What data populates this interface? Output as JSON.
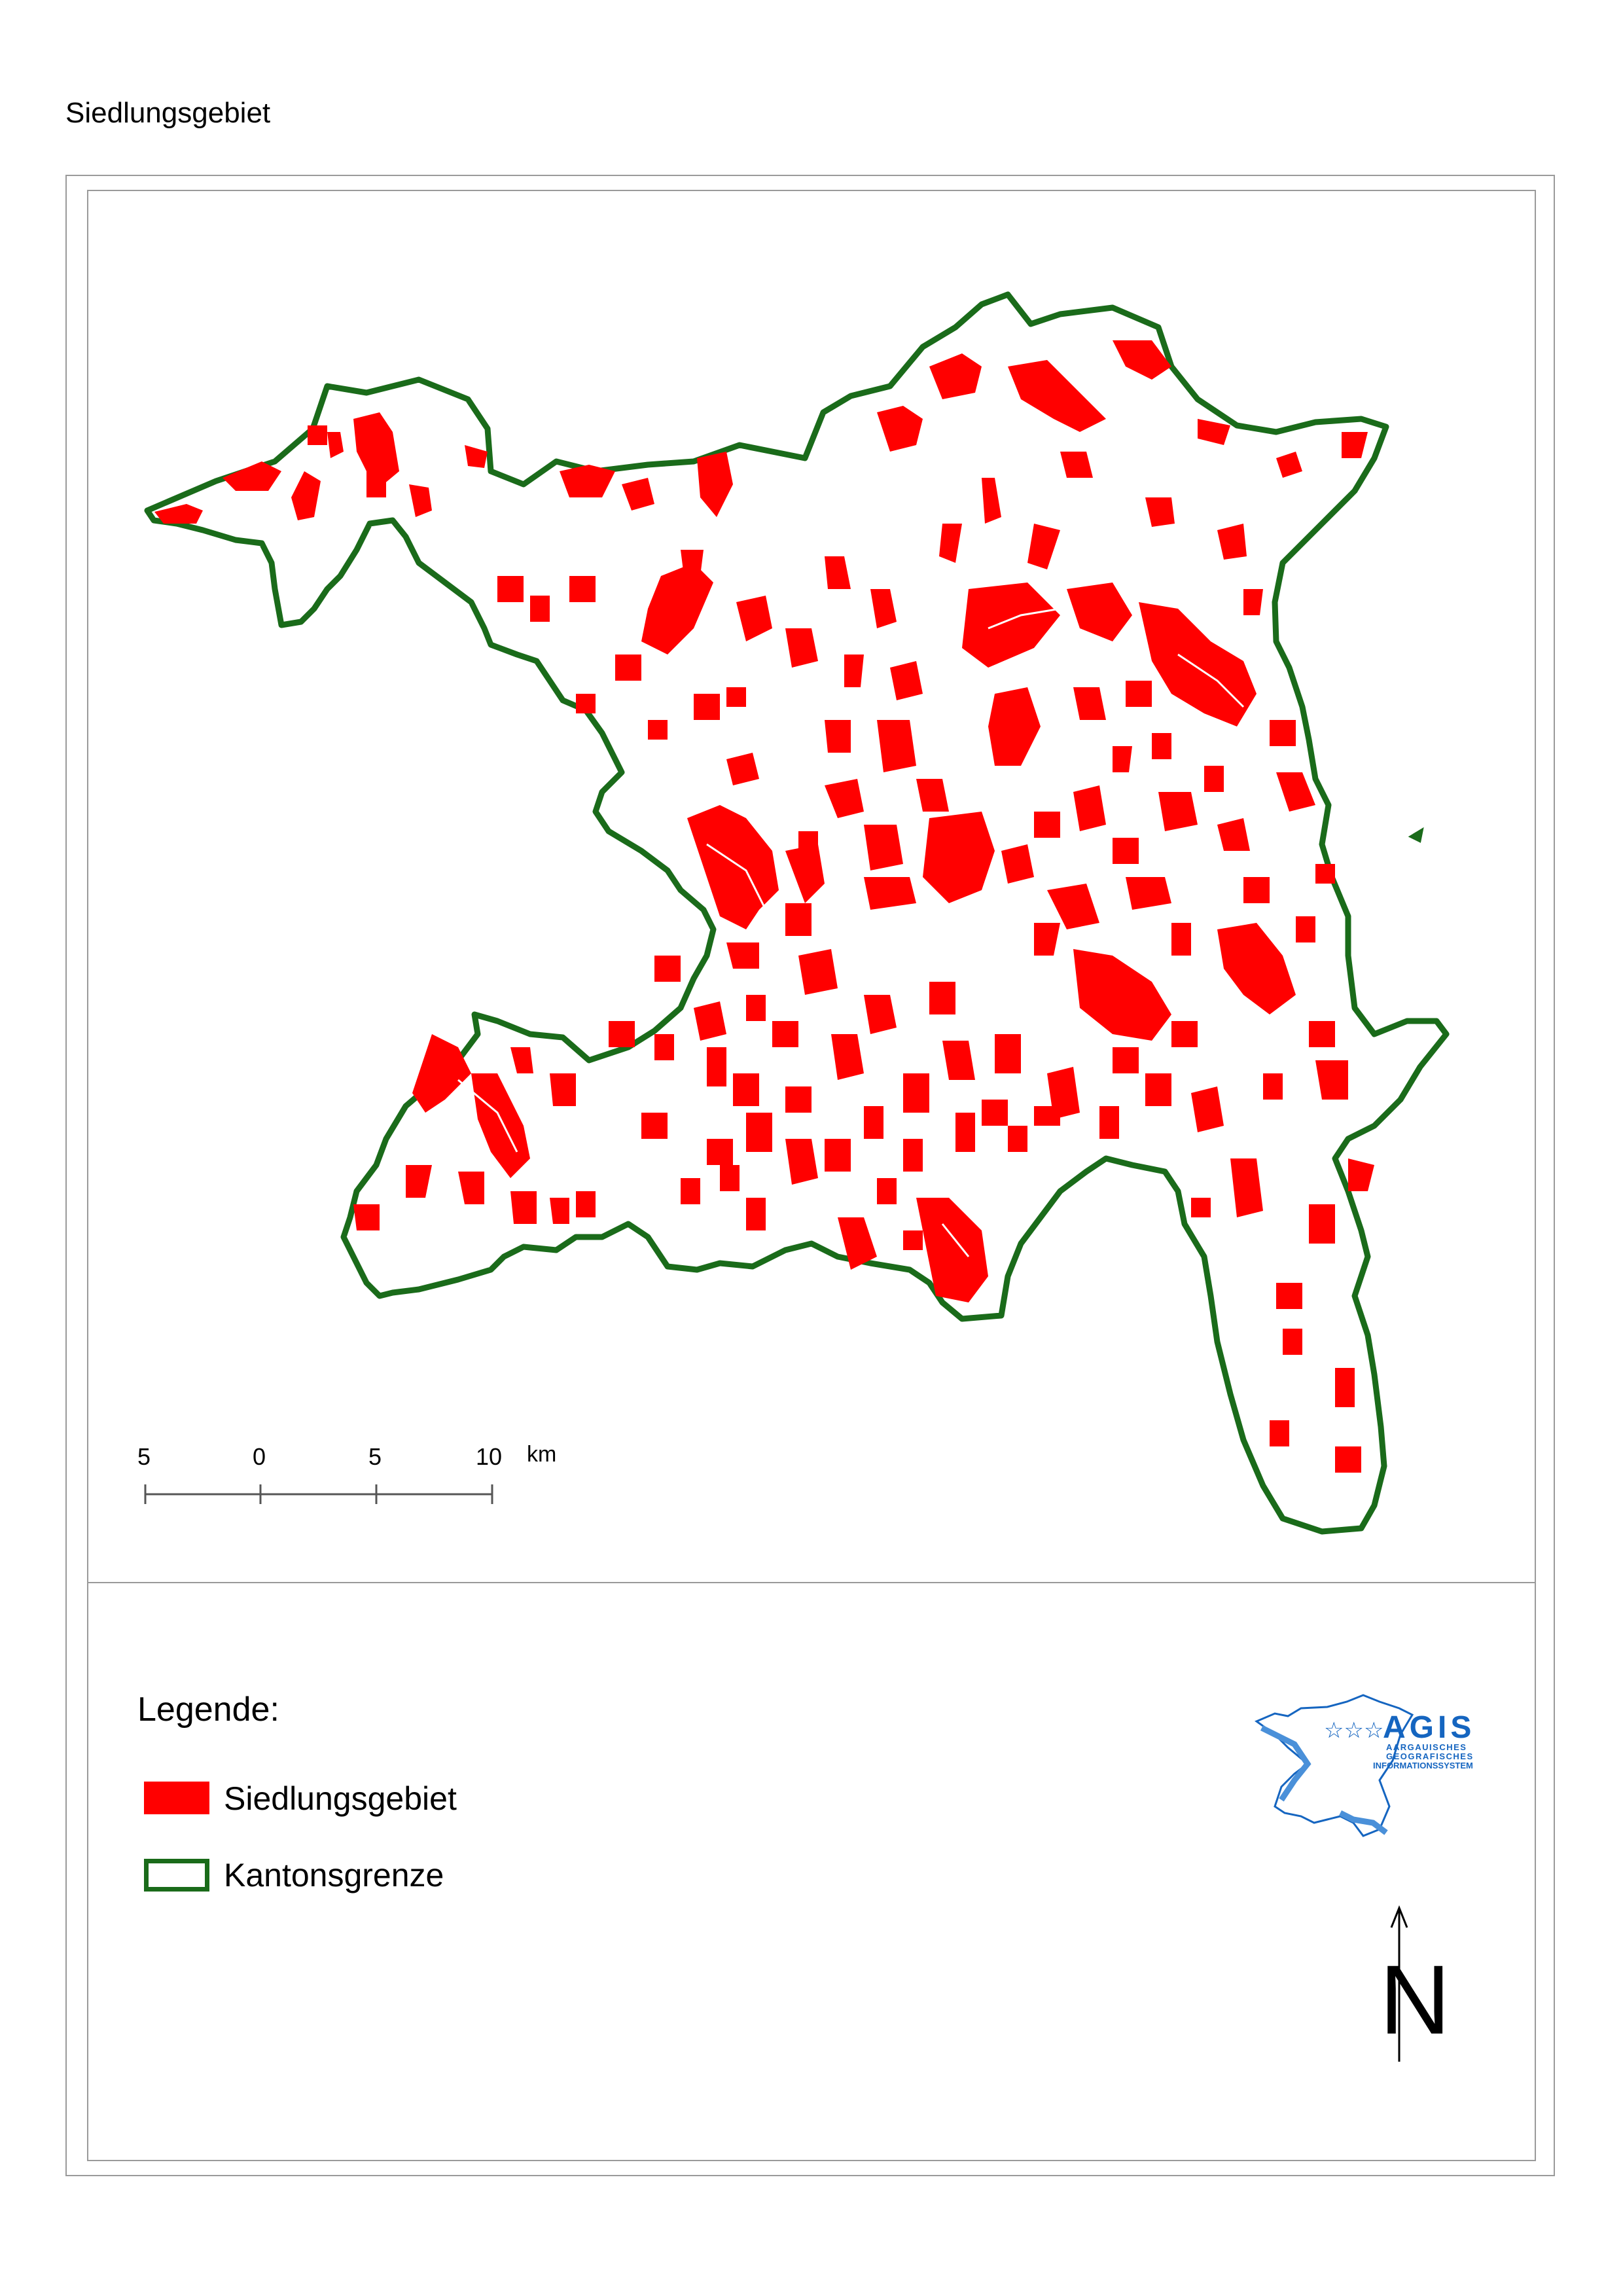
{
  "title": "Siedlungsgebiet",
  "scale": {
    "ticks": [
      "5",
      "0",
      "5",
      "10"
    ],
    "unit": "km"
  },
  "legend": {
    "title": "Legende:",
    "items": [
      {
        "label": "Siedlungsgebiet",
        "color": "#ff0000",
        "type": "fill"
      },
      {
        "label": "Kantonsgrenze",
        "color": "#1a6b1a",
        "type": "outline"
      }
    ]
  },
  "logo": {
    "name": "AGIS",
    "line1": "AARGAUISCHES",
    "line2": "GEOGRAFISCHES",
    "line3": "INFORMATIONSSYSTEM",
    "color": "#1565c0"
  },
  "north_arrow": {
    "label": "N"
  },
  "colors": {
    "settlement": "#ff0000",
    "border": "#1a6b1a",
    "frame": "#9a9a9a"
  }
}
